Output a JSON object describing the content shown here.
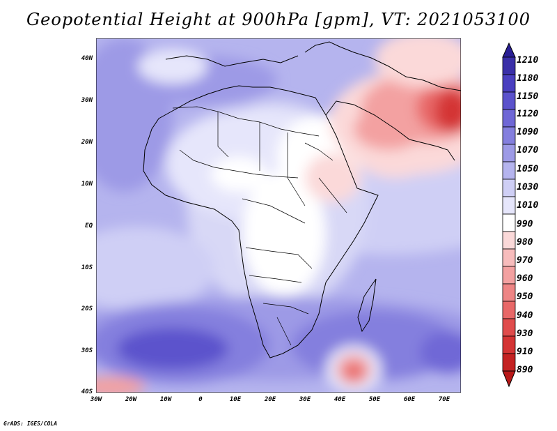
{
  "title": "Geopotential Height at 900hPa [gpm], VT: 2021053100",
  "credit": "GrADS: IGES/COLA",
  "y_tick_labels": [
    "40N",
    "30N",
    "20N",
    "10N",
    "EQ",
    "10S",
    "20S",
    "30S",
    "40S"
  ],
  "x_tick_labels": [
    "30W",
    "20W",
    "10W",
    "0",
    "10E",
    "20E",
    "30E",
    "40E",
    "50E",
    "60E",
    "70E"
  ],
  "colorbar": {
    "labels": [
      "1210",
      "1180",
      "1150",
      "1120",
      "1090",
      "1070",
      "1050",
      "1030",
      "1010",
      "990",
      "980",
      "970",
      "960",
      "950",
      "940",
      "930",
      "910",
      "890"
    ],
    "colors": [
      "#3a2fa8",
      "#4a3fc0",
      "#5b52cc",
      "#6f67d6",
      "#847fde",
      "#9d9ae6",
      "#b5b4ee",
      "#cfcff5",
      "#e6e6fb",
      "#ffffff",
      "#fbd9d9",
      "#f7bcbc",
      "#f3a1a1",
      "#ee8585",
      "#e86868",
      "#e04c4c",
      "#d43434",
      "#c42222"
    ]
  },
  "chart_data": {
    "type": "heatmap",
    "title": "Geopotential Height at 900hPa [gpm], VT: 2021053100",
    "variable": "Geopotential Height",
    "level_hPa": 900,
    "units": "gpm",
    "valid_time": "2021053100",
    "lon_range": [
      -30,
      75
    ],
    "lat_range": [
      -40,
      45
    ],
    "contour_levels": [
      890,
      910,
      930,
      940,
      950,
      960,
      970,
      980,
      990,
      1010,
      1030,
      1050,
      1070,
      1090,
      1120,
      1150,
      1180,
      1210
    ]
  }
}
